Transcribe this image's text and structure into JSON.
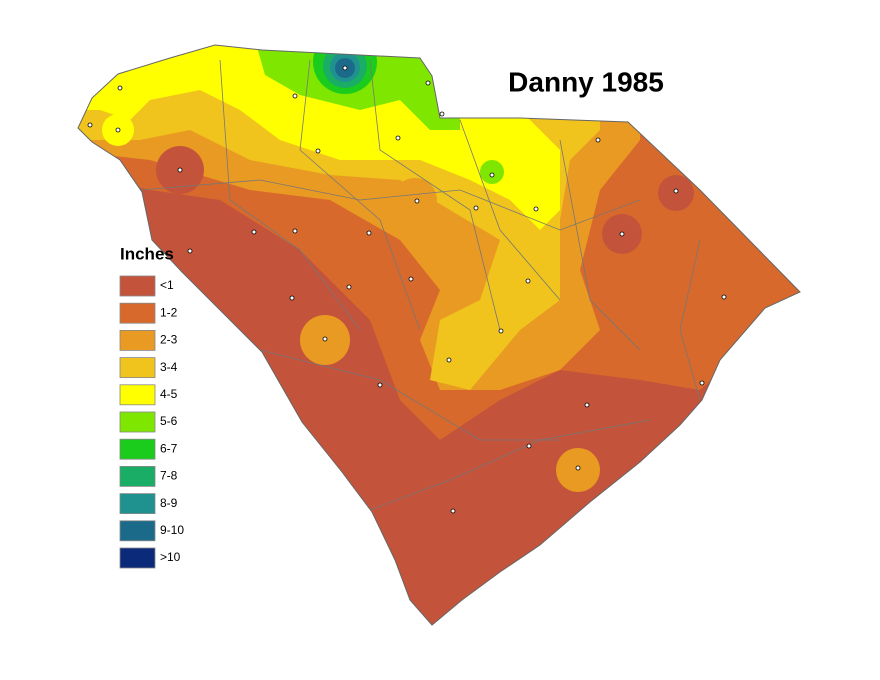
{
  "title": "Danny 1985",
  "legend": {
    "title": "Inches",
    "items": [
      {
        "label": "<1",
        "color": "#c4533b"
      },
      {
        "label": "1-2",
        "color": "#d8692c"
      },
      {
        "label": "2-3",
        "color": "#e99a22"
      },
      {
        "label": "3-4",
        "color": "#f0c41c"
      },
      {
        "label": "4-5",
        "color": "#ffff00"
      },
      {
        "label": "5-6",
        "color": "#7fe600"
      },
      {
        "label": "6-7",
        "color": "#1ccc1c"
      },
      {
        "label": "7-8",
        "color": "#19ad66"
      },
      {
        "label": "8-9",
        "color": "#1f928f"
      },
      {
        "label": "9-10",
        "color": "#1c6a8a"
      },
      {
        "label": ">10",
        "color": "#0c2a7a"
      }
    ]
  }
}
